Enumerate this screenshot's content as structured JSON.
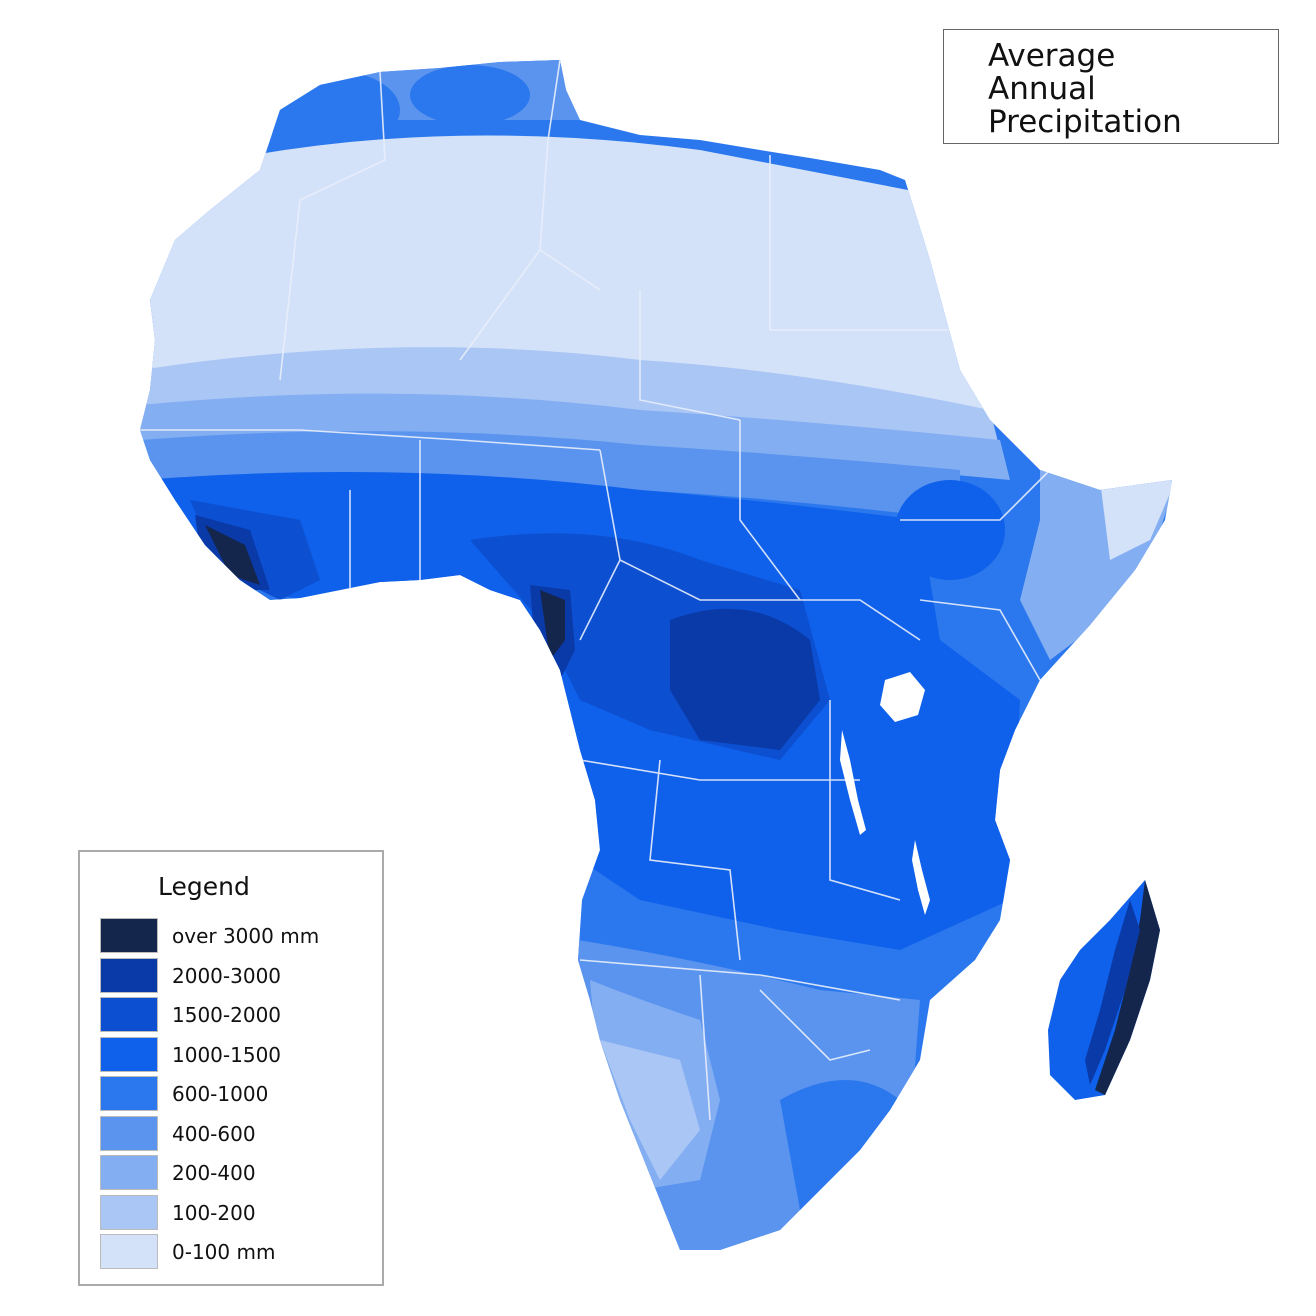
{
  "title": {
    "lines": [
      "Average",
      "Annual",
      "Precipitation"
    ]
  },
  "legend": {
    "title": "Legend",
    "items": [
      {
        "label": "over 3000 mm",
        "color": "#14264c"
      },
      {
        "label": "2000-3000",
        "color": "#0a3aa8"
      },
      {
        "label": "1500-2000",
        "color": "#0c4fd0"
      },
      {
        "label": "1000-1500",
        "color": "#0f60ea"
      },
      {
        "label": "600-1000",
        "color": "#2b78ee"
      },
      {
        "label": "400-600",
        "color": "#5a94ee"
      },
      {
        "label": "200-400",
        "color": "#84aef2"
      },
      {
        "label": "100-200",
        "color": "#aac6f5"
      },
      {
        "label": "0-100 mm",
        "color": "#d4e2f9"
      }
    ]
  }
}
